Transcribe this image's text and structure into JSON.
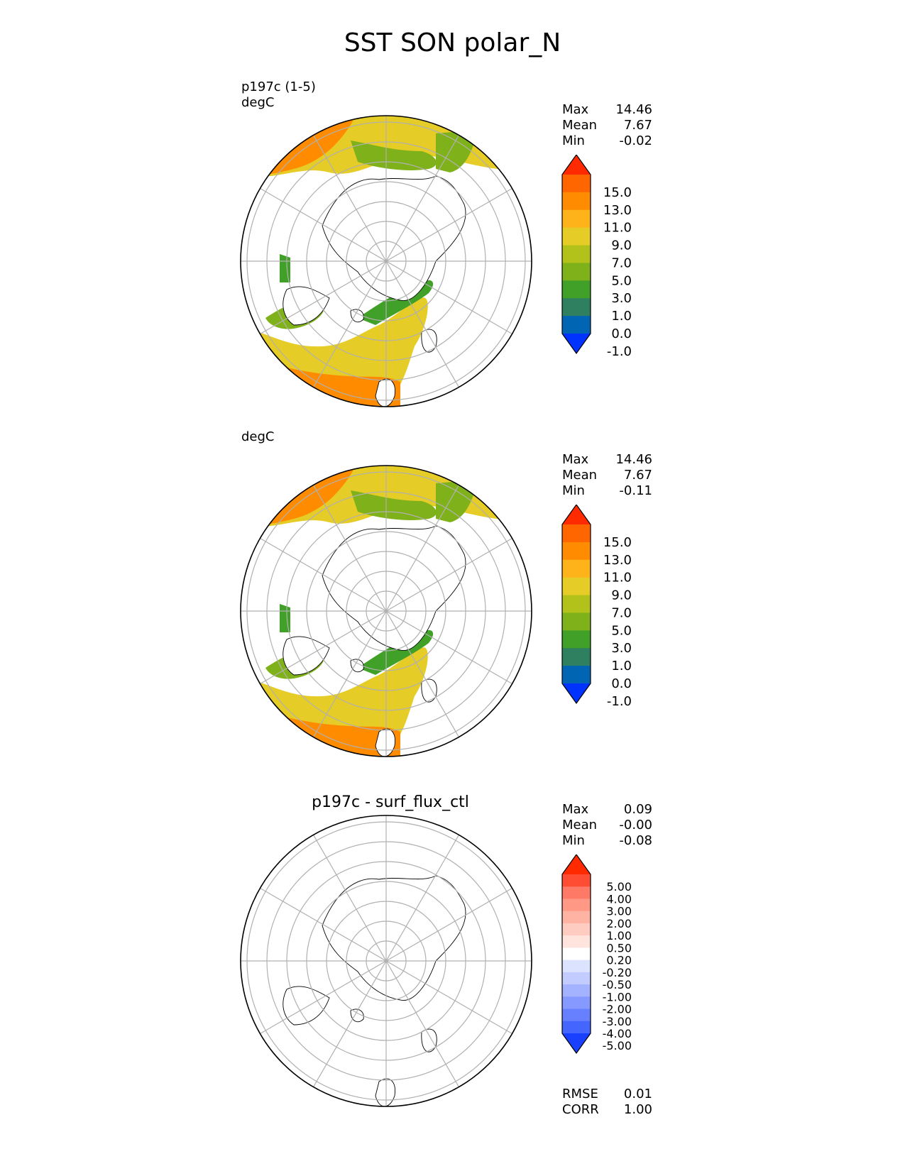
{
  "title": "SST SON polar_N",
  "panels": [
    {
      "id": "test",
      "left_label": "p197c (1-5)\ndegC",
      "center_title": "",
      "stats": [
        {
          "label": "Max",
          "value": "14.46"
        },
        {
          "label": "Mean",
          "value": "7.67"
        },
        {
          "label": "Min",
          "value": "-0.02"
        }
      ],
      "colorbar": {
        "labels": [
          "15.0",
          "13.0",
          "11.0",
          "9.0",
          "7.0",
          "5.0",
          "3.0",
          "1.0",
          "0.0",
          "-1.0"
        ],
        "colors": [
          "#ff2a00",
          "#ff6600",
          "#ff8c00",
          "#ffb31a",
          "#e6cc26",
          "#b3c21a",
          "#7fb21a",
          "#40a028",
          "#2e8060",
          "#0066b3",
          "#0033ff"
        ]
      },
      "extra_stats": []
    },
    {
      "id": "reference",
      "left_label": "degC",
      "center_title": "",
      "stats": [
        {
          "label": "Max",
          "value": "14.46"
        },
        {
          "label": "Mean",
          "value": "7.67"
        },
        {
          "label": "Min",
          "value": "-0.11"
        }
      ],
      "colorbar": {
        "labels": [
          "15.0",
          "13.0",
          "11.0",
          "9.0",
          "7.0",
          "5.0",
          "3.0",
          "1.0",
          "0.0",
          "-1.0"
        ],
        "colors": [
          "#ff2a00",
          "#ff6600",
          "#ff8c00",
          "#ffb31a",
          "#e6cc26",
          "#b3c21a",
          "#7fb21a",
          "#40a028",
          "#2e8060",
          "#0066b3",
          "#0033ff"
        ]
      },
      "extra_stats": []
    },
    {
      "id": "difference",
      "left_label": "",
      "center_title": "p197c - surf_flux_ctl",
      "stats": [
        {
          "label": "Max",
          "value": "0.09"
        },
        {
          "label": "Mean",
          "value": "-0.00"
        },
        {
          "label": "Min",
          "value": "-0.08"
        }
      ],
      "colorbar": {
        "labels": [
          "5.00",
          "4.00",
          "3.00",
          "2.00",
          "1.00",
          "0.50",
          "0.20",
          "-0.20",
          "-0.50",
          "-1.00",
          "-2.00",
          "-3.00",
          "-4.00",
          "-5.00"
        ],
        "colors": [
          "#ff2a00",
          "#ff4d33",
          "#ff7a66",
          "#ff9985",
          "#ffb3a3",
          "#ffccc2",
          "#ffe4de",
          "#ffffff",
          "#dce3ff",
          "#c2ccff",
          "#a3b3ff",
          "#8599ff",
          "#6680ff",
          "#4466ff",
          "#1a40ff"
        ]
      },
      "extra_stats": [
        {
          "label": "RMSE",
          "value": "0.01"
        },
        {
          "label": "CORR",
          "value": "1.00"
        }
      ]
    }
  ],
  "map_colors": {
    "warm": "#ff8c00",
    "mid": "#e6cc26",
    "cool": "#7fb21a",
    "cold": "#40a028",
    "coastline": "#000000",
    "grid": "#b0b0b0"
  }
}
